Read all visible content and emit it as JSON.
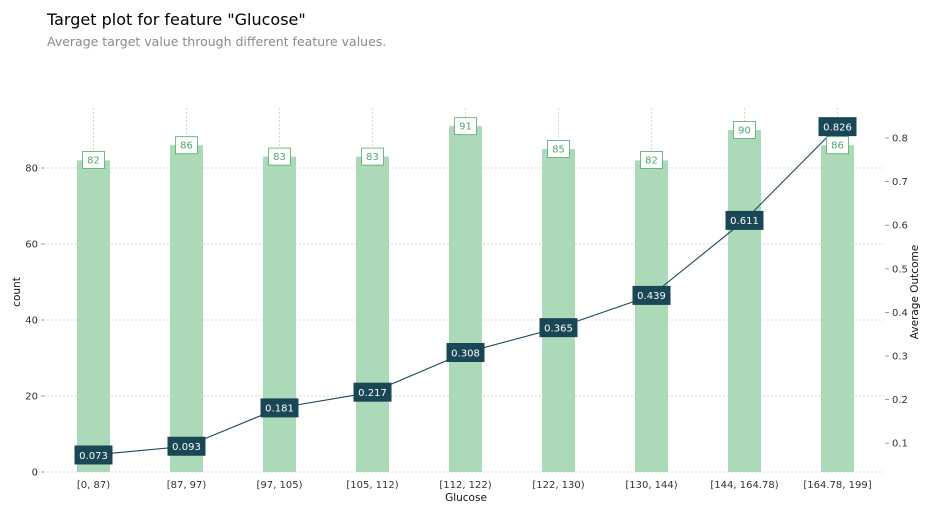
{
  "title": "Target plot for feature \"Glucose\"",
  "subtitle": "Average target value through different feature values.",
  "chart_data": {
    "type": "bar",
    "categories": [
      "[0, 87)",
      "[87, 97)",
      "[97, 105)",
      "[105, 112)",
      "[112, 122)",
      "[122, 130)",
      "[130, 144)",
      "[144, 164.78)",
      "[164.78, 199]"
    ],
    "series": [
      {
        "values": [
          82,
          86,
          83,
          83,
          91,
          85,
          82,
          90,
          86
        ],
        "type": "bar",
        "axis": "left"
      },
      {
        "values": [
          0.073,
          0.093,
          0.181,
          0.217,
          0.308,
          0.365,
          0.439,
          0.611,
          0.826
        ],
        "type": "line",
        "axis": "right"
      }
    ],
    "xlabel": "Glucose",
    "ylabel": "count",
    "ylabel_right": "Average Outcome",
    "ylim": [
      0,
      95.5
    ],
    "ylim_right": [
      0.035,
      0.865
    ],
    "yticks": [
      "0",
      "20",
      "40",
      "60",
      "80"
    ],
    "yticks_right": [
      "0.1",
      "0.2",
      "0.3",
      "0.4",
      "0.5",
      "0.6",
      "0.7",
      "0.8"
    ],
    "bar_labels": [
      "82",
      "86",
      "83",
      "83",
      "91",
      "85",
      "82",
      "90",
      "86"
    ],
    "line_labels": [
      "0.073",
      "0.093",
      "0.181",
      "0.217",
      "0.308",
      "0.365",
      "0.439",
      "0.611",
      "0.826"
    ],
    "grid": true,
    "colors": {
      "bar": "#acd9b7",
      "bar_label": "#4fa86a",
      "line": "#1a4756"
    }
  }
}
